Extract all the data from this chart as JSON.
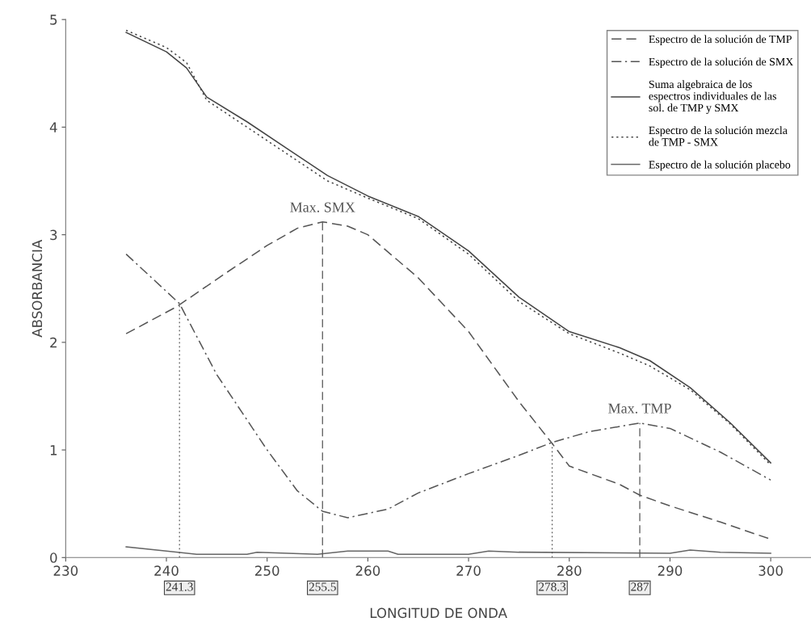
{
  "chart_data": {
    "type": "line",
    "xlabel": "LONGITUD DE ONDA",
    "ylabel": "ABSORBANCIA",
    "xlim": [
      230,
      304
    ],
    "xticks": [
      230,
      240,
      250,
      260,
      270,
      280,
      290,
      300
    ],
    "ylim": [
      0,
      5
    ],
    "yticks": [
      0,
      1,
      2,
      3,
      4,
      5
    ],
    "grid": false,
    "legend": "top right",
    "series": [
      {
        "name": "Espectro de la solución de TMP",
        "color": "#555555",
        "line_style": "dashed",
        "x": [
          236,
          241,
          246,
          250,
          253,
          255.5,
          258,
          260,
          265,
          270,
          275,
          278.3,
          280,
          285,
          287,
          290,
          295,
          300
        ],
        "values": [
          2.08,
          2.33,
          2.65,
          2.9,
          3.06,
          3.12,
          3.08,
          3.0,
          2.6,
          2.1,
          1.45,
          1.06,
          0.85,
          0.68,
          0.58,
          0.48,
          0.33,
          0.17
        ]
      },
      {
        "name": "Espectro de la solución de SMX",
        "color": "#555555",
        "line_style": "dashdot",
        "x": [
          236,
          241.3,
          245,
          250,
          253,
          255.5,
          258,
          262,
          265,
          270,
          275,
          278.3,
          282,
          287,
          290,
          295,
          300
        ],
        "values": [
          2.82,
          2.36,
          1.7,
          1.0,
          0.62,
          0.43,
          0.37,
          0.45,
          0.6,
          0.78,
          0.95,
          1.07,
          1.17,
          1.25,
          1.2,
          0.98,
          0.72
        ]
      },
      {
        "name": "Suma algebraica de los espectros individuales de las sol. de TMP y SMX",
        "color": "#444444",
        "line_style": "solid",
        "x": [
          236,
          240,
          242,
          244,
          248,
          252,
          256,
          260,
          265,
          270,
          275,
          280,
          285,
          288,
          292,
          296,
          300
        ],
        "values": [
          4.88,
          4.7,
          4.55,
          4.28,
          4.05,
          3.8,
          3.55,
          3.36,
          3.17,
          2.85,
          2.42,
          2.1,
          1.95,
          1.83,
          1.58,
          1.25,
          0.88
        ]
      },
      {
        "name": "Espectro de la solución mezcla de TMP - SMX",
        "color": "#444444",
        "line_style": "dotted",
        "x": [
          236,
          240,
          242,
          244,
          248,
          252,
          256,
          260,
          265,
          270,
          275,
          280,
          285,
          288,
          292,
          296,
          300
        ],
        "values": [
          4.9,
          4.74,
          4.6,
          4.25,
          4.0,
          3.75,
          3.5,
          3.34,
          3.15,
          2.82,
          2.38,
          2.08,
          1.9,
          1.78,
          1.56,
          1.24,
          0.86
        ]
      },
      {
        "name": "Espectro de la solución placebo",
        "color": "#666666",
        "line_style": "solid",
        "x": [
          236,
          240,
          243,
          248,
          249,
          255,
          258,
          262,
          263,
          270,
          272,
          275,
          290,
          292,
          295,
          300
        ],
        "values": [
          0.1,
          0.06,
          0.03,
          0.03,
          0.05,
          0.03,
          0.06,
          0.06,
          0.03,
          0.03,
          0.06,
          0.05,
          0.04,
          0.07,
          0.05,
          0.04
        ]
      }
    ],
    "ref_lines": [
      {
        "axis": "x",
        "value": 241.3,
        "label": "241.3",
        "line_style": "dotted"
      },
      {
        "axis": "x",
        "value": 255.5,
        "label": "255.5",
        "line_style": "dashed"
      },
      {
        "axis": "x",
        "value": 278.3,
        "label": "278.3",
        "line_style": "dotted"
      },
      {
        "axis": "x",
        "value": 287,
        "label": "287",
        "line_style": "dashed"
      }
    ],
    "annotations": [
      {
        "text": "Max. SMX",
        "x": 255.5,
        "y": 3.12
      },
      {
        "text": "Max. TMP",
        "x": 287,
        "y": 1.25
      }
    ]
  }
}
